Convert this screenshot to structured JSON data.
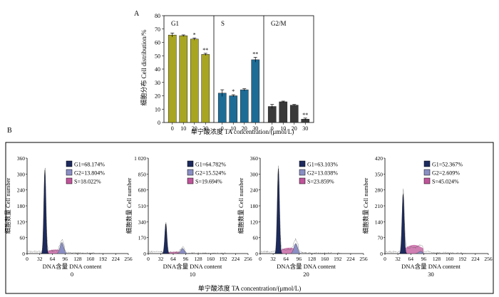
{
  "panel_a": {
    "label": "A",
    "xlabel": "单宁酸浓度 TA concentration/(μmol/L)",
    "ylabel": "细胞分布  Cell distribution/%"
  },
  "panel_b": {
    "label": "B",
    "xlabel": "单宁酸浓度 TA concentration/(μmol/L)"
  },
  "chart_data": [
    {
      "type": "bar",
      "panel": "A",
      "categories": [
        "0",
        "10",
        "20",
        "30"
      ],
      "ylabel": "细胞分布  Cell distribution/%",
      "xlabel": "单宁酸浓度 TA concentration/(μmol/L)",
      "ylim": [
        0,
        80
      ],
      "yticks": [
        "0",
        "10",
        "20",
        "30",
        "40",
        "50",
        "60",
        "70",
        "80"
      ],
      "groups": [
        {
          "name": "G1",
          "color": "#a8a522",
          "values": [
            65.5,
            65.0,
            62.5,
            51.0
          ],
          "errors": [
            1.5,
            0.6,
            0.8,
            0.8
          ],
          "marks": [
            "",
            "",
            "*",
            "**"
          ]
        },
        {
          "name": "S",
          "color": "#1d6c96",
          "values": [
            22.0,
            20.0,
            24.5,
            47.0
          ],
          "errors": [
            2.5,
            0.8,
            0.8,
            1.8
          ],
          "marks": [
            "",
            "*",
            "",
            "**"
          ]
        },
        {
          "name": "G2/M",
          "color": "#3a3a3a",
          "values": [
            12.0,
            15.5,
            13.0,
            2.5
          ],
          "errors": [
            1.5,
            0.5,
            0.5,
            0.8
          ],
          "marks": [
            "",
            "",
            "",
            "**"
          ]
        }
      ]
    },
    {
      "type": "area",
      "panel": "B",
      "xlabel": "DNA含量  DNA content",
      "ylabel": "细胞数量  Cell number",
      "xticks": [
        "0",
        "32",
        "64",
        "96",
        "128",
        "160",
        "192",
        "224",
        "256"
      ],
      "histograms": [
        {
          "treatment": "0",
          "ymax": 360,
          "yticks": [
            "0",
            "60",
            "120",
            "180",
            "240",
            "300",
            "360"
          ],
          "legend": [
            "G1=68.174%",
            "G2=13.804%",
            "S=18.022%"
          ],
          "g1_peak": 315,
          "g2_peak": 42,
          "s_level": 15,
          "g1_pos": 45,
          "g2_pos": 88,
          "s_end": 95
        },
        {
          "treatment": "10",
          "ymax": 1020,
          "yticks": [
            "0",
            "170",
            "340",
            "510",
            "680",
            "850",
            "1 020"
          ],
          "legend": [
            "G1=64.782%",
            "G2=15.524%",
            "S=19.694%"
          ],
          "g1_peak": 320,
          "g2_peak": 55,
          "s_level": 20,
          "g1_pos": 45,
          "g2_pos": 88,
          "s_end": 95
        },
        {
          "treatment": "20",
          "ymax": 360,
          "yticks": [
            "0",
            "60",
            "120",
            "180",
            "240",
            "300",
            "360"
          ],
          "legend": [
            "G1=63.103%",
            "G2=13.038%",
            "S=23.859%"
          ],
          "g1_peak": 320,
          "g2_peak": 38,
          "s_level": 22,
          "g1_pos": 45,
          "g2_pos": 88,
          "s_end": 95
        },
        {
          "treatment": "30",
          "ymax": 420,
          "yticks": [
            "0",
            "70",
            "140",
            "210",
            "280",
            "350",
            "420"
          ],
          "legend": [
            "G1=52.367%",
            "G2=2.609%",
            "S=45.024%"
          ],
          "g1_peak": 262,
          "g2_peak": 10,
          "s_level": 38,
          "g1_pos": 45,
          "g2_pos": 88,
          "s_end": 95
        }
      ],
      "legend_colors": [
        "#1c2a5e",
        "#8a8fc4",
        "#c0549a"
      ]
    }
  ]
}
